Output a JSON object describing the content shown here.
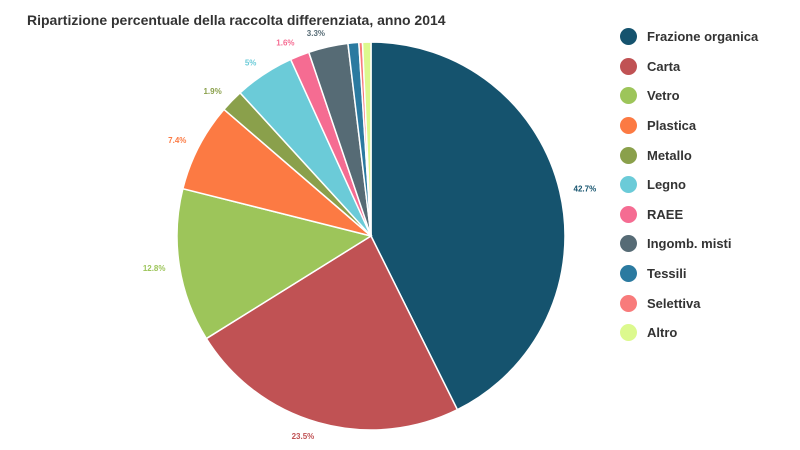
{
  "chart_data": {
    "type": "pie",
    "title": "Ripartizione percentuale della raccolta differenziata, anno 2014",
    "categories": [
      "Frazione organica",
      "Carta",
      "Vetro",
      "Plastica",
      "Metallo",
      "Legno",
      "RAEE",
      "Ingomb. misti",
      "Tessili",
      "Selettiva",
      "Altro"
    ],
    "values": [
      42.7,
      23.5,
      12.8,
      7.4,
      1.9,
      5.0,
      1.6,
      3.3,
      0.9,
      0.3,
      0.7
    ],
    "labels": [
      "42.7%",
      "23.5%",
      "12.8%",
      "7.4%",
      "1.9%",
      "5%",
      "1.6%",
      "3.3%",
      "",
      "",
      ""
    ],
    "colors": [
      "#15536e",
      "#c05254",
      "#9dc55a",
      "#fc7a43",
      "#8aa04b",
      "#6bcbd8",
      "#f56c92",
      "#566b75",
      "#2b7aa0",
      "#f87b7b",
      "#dcf98e"
    ],
    "legend_position": "right"
  }
}
